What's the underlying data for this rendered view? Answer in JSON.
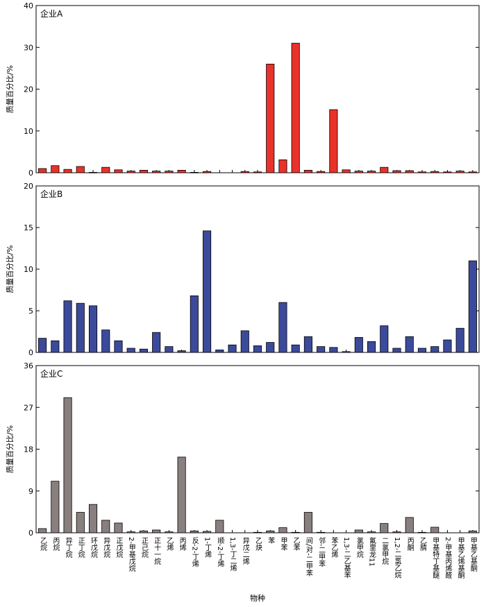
{
  "chart_data": {
    "type": "bar",
    "categories": [
      "乙烷",
      "丙烷",
      "异丁烷",
      "正丁烷",
      "环戊烷",
      "异戊烷",
      "正戊烷",
      "2-甲基戊烷",
      "正己烷",
      "正十一烷",
      "乙烯",
      "丙烯",
      "反-2-丁烯",
      "1-丁烯",
      "顺-2-丁烯",
      "1,3-丁二烯",
      "异戊二烯",
      "乙炔",
      "苯",
      "甲苯",
      "乙苯",
      "间/对-二甲苯",
      "邻-二甲苯",
      "苯乙烯",
      "1,3-二乙基苯",
      "氯甲烷",
      "氟里龙11",
      "二氯甲烷",
      "1,2-二氯乙烷",
      "丙酮",
      "乙腈",
      "甲基特丁基醚",
      "2-甲基丙烯醛",
      "甲基乙烯基酮",
      "甲基乙基酮"
    ],
    "xlabel": "物种",
    "ylabel": "质量百分比/%",
    "panels": [
      {
        "label": "企业A",
        "color": "#e8322a",
        "ylim": [
          0,
          40
        ],
        "yticks": [
          0,
          10,
          20,
          30,
          40
        ],
        "values": [
          1.0,
          1.7,
          0.8,
          1.5,
          0.1,
          1.3,
          0.7,
          0.4,
          0.6,
          0.4,
          0.4,
          0.6,
          0.1,
          0.3,
          0,
          0,
          0.3,
          0.2,
          26.0,
          3.1,
          31.0,
          0.6,
          0.3,
          15.1,
          0.7,
          0.4,
          0.4,
          1.3,
          0.5,
          0.5,
          0.2,
          0.3,
          0.2,
          0.4,
          0.2
        ]
      },
      {
        "label": "企业B",
        "color": "#3b4a9a",
        "ylim": [
          0,
          20
        ],
        "yticks": [
          0,
          5,
          10,
          15,
          20
        ],
        "values": [
          1.7,
          1.4,
          6.2,
          5.9,
          5.6,
          2.7,
          1.4,
          0.5,
          0.4,
          2.4,
          0.7,
          0.2,
          6.8,
          14.6,
          0.3,
          0.9,
          2.6,
          0.8,
          1.2,
          6.0,
          0.9,
          1.9,
          0.7,
          0.6,
          0.1,
          1.8,
          1.3,
          3.2,
          0.5,
          1.9,
          0.5,
          0.7,
          1.5,
          2.9,
          11.0
        ]
      },
      {
        "label": "企业C",
        "color": "#8a7f7f",
        "ylim": [
          0,
          36
        ],
        "yticks": [
          0,
          9,
          18,
          27,
          36
        ],
        "values": [
          0.9,
          11.1,
          29.1,
          4.4,
          6.1,
          2.7,
          2.1,
          0.2,
          0.4,
          0.6,
          0.2,
          16.3,
          0.4,
          0.3,
          2.7,
          0,
          0,
          0.1,
          0.4,
          1.1,
          0.1,
          4.4,
          0.1,
          0,
          0,
          0.6,
          0.2,
          2.0,
          0.2,
          3.3,
          0.1,
          1.2,
          0,
          0,
          0.4
        ]
      }
    ]
  }
}
